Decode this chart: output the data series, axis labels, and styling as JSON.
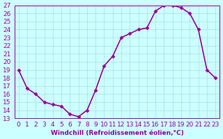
{
  "x": [
    0,
    1,
    2,
    3,
    4,
    5,
    6,
    7,
    8,
    9,
    10,
    11,
    12,
    13,
    14,
    15,
    16,
    17,
    18,
    19,
    20,
    21,
    22,
    23
  ],
  "y": [
    19,
    16.7,
    16,
    15,
    14.7,
    14.5,
    13.5,
    13.2,
    14,
    16.5,
    19.5,
    20.7,
    23,
    23.5,
    24,
    24.2,
    26.3,
    27,
    27,
    26.7,
    26,
    24,
    19,
    18
  ],
  "line_color": "#990099",
  "marker": "D",
  "marker_size": 2.5,
  "bg_color": "#ccffff",
  "grid_color": "#aadddd",
  "xlabel": "Windchill (Refroidissement éolien,°C)",
  "xlabel_color": "#990099",
  "tick_color": "#990099",
  "ylim": [
    13,
    27
  ],
  "xlim_min": -0.5,
  "xlim_max": 23.5,
  "yticks": [
    13,
    14,
    15,
    16,
    17,
    18,
    19,
    20,
    21,
    22,
    23,
    24,
    25,
    26,
    27
  ],
  "xticks": [
    0,
    1,
    2,
    3,
    4,
    5,
    6,
    7,
    8,
    9,
    10,
    11,
    12,
    13,
    14,
    15,
    16,
    17,
    18,
    19,
    20,
    21,
    22,
    23
  ],
  "font_size": 6.5,
  "lw": 1.2
}
